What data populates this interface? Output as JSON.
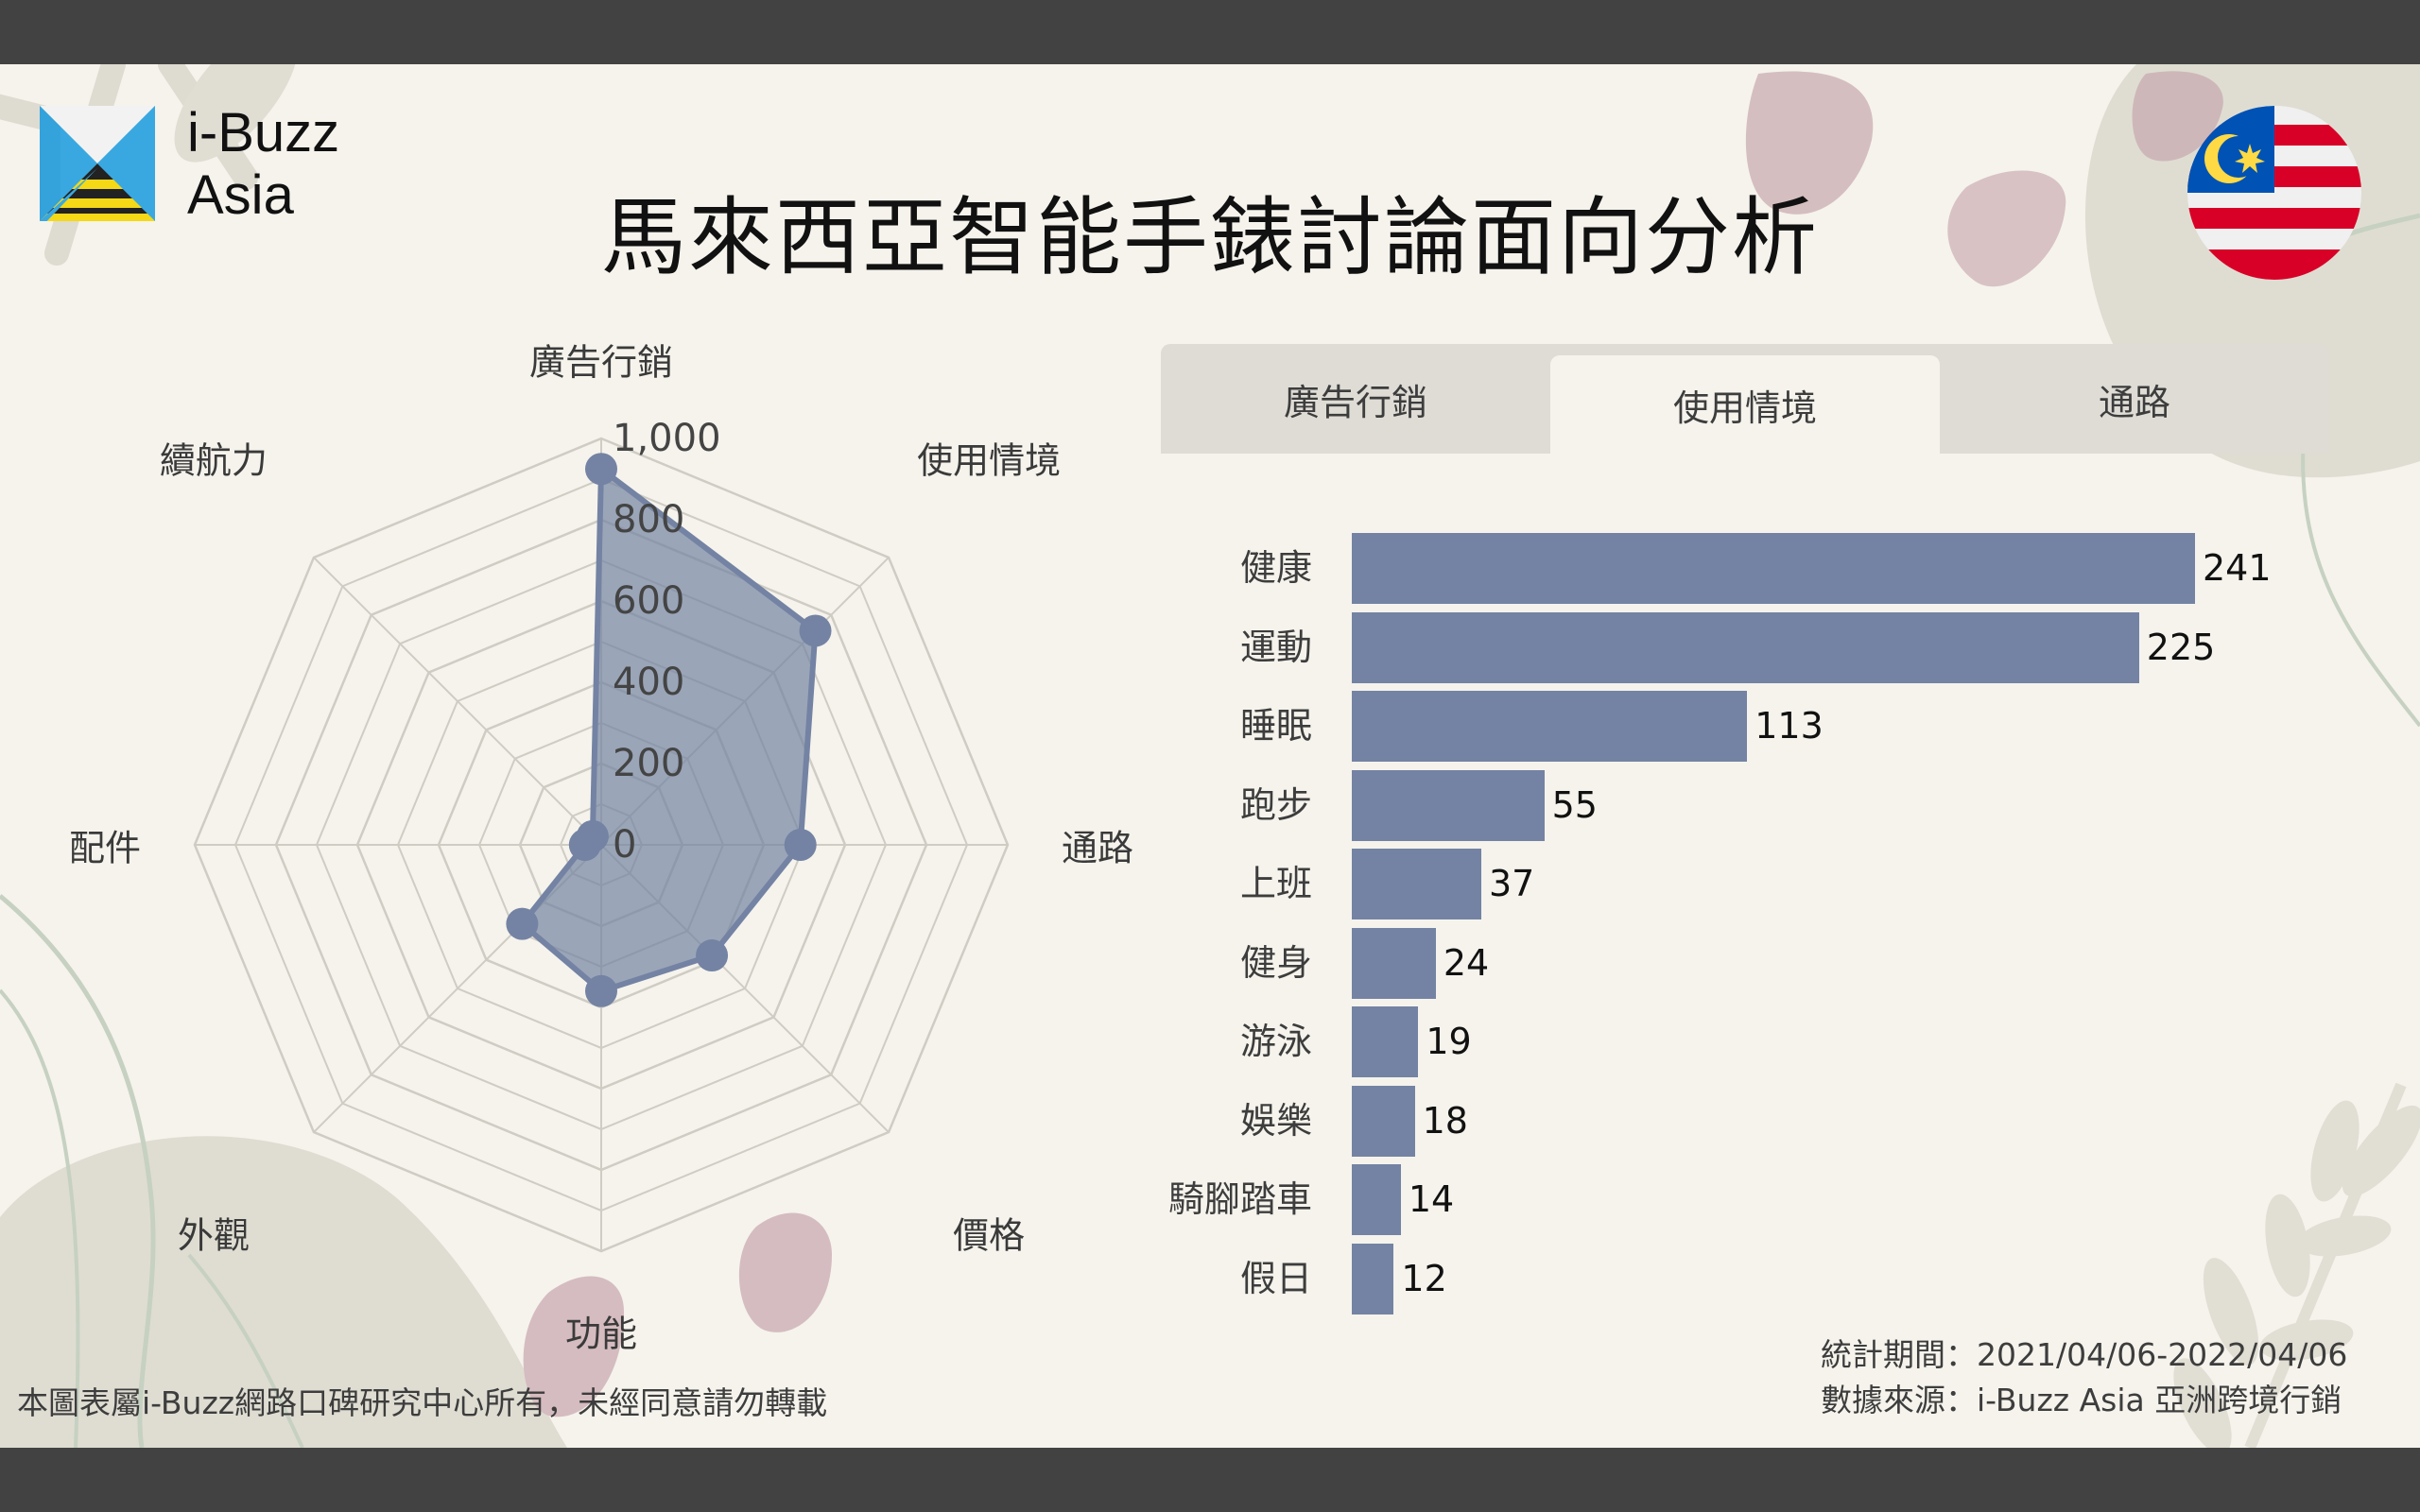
{
  "header": {
    "logo_line1": "i-Buzz",
    "logo_line2": "Asia",
    "title": "馬來西亞智能手錶討論面向分析",
    "flag_icon": "malaysia-flag-icon"
  },
  "tabs": [
    {
      "label": "廣告行銷",
      "active": false
    },
    {
      "label": "使用情境",
      "active": true
    },
    {
      "label": "通路",
      "active": false
    }
  ],
  "footer": {
    "copyright": "本圖表屬i-Buzz網路口碑研究中心所有，未經同意請勿轉載",
    "period": "統計期間：2021/04/06-2022/04/06",
    "source": "數據來源：i-Buzz Asia 亞洲跨境行銷"
  },
  "colors": {
    "series": "#7483a3",
    "background": "#f5f3ec",
    "grid": "#cfccc4",
    "frame": "#424242"
  },
  "chart_data": [
    {
      "type": "radar",
      "title": "",
      "categories": [
        "廣告行銷",
        "使用情境",
        "通路",
        "價格",
        "功能",
        "外觀",
        "配件",
        "續航力"
      ],
      "values": [
        925,
        745,
        490,
        385,
        360,
        275,
        40,
        30
      ],
      "axis_ticks": [
        "0",
        "200",
        "400",
        "600",
        "800",
        "1,000"
      ],
      "rlim": [
        0,
        1000
      ],
      "grid": true
    },
    {
      "type": "bar",
      "orientation": "horizontal",
      "title": "使用情境",
      "categories": [
        "健康",
        "運動",
        "睡眠",
        "跑步",
        "上班",
        "健身",
        "游泳",
        "娛樂",
        "騎腳踏車",
        "假日"
      ],
      "values": [
        241,
        225,
        113,
        55,
        37,
        24,
        19,
        18,
        14,
        12
      ],
      "data_labels": [
        "241",
        "225",
        "113",
        "55",
        "37",
        "24",
        "19",
        "18",
        "14",
        "12"
      ],
      "xlim": [
        0,
        241
      ],
      "grid": false
    }
  ]
}
